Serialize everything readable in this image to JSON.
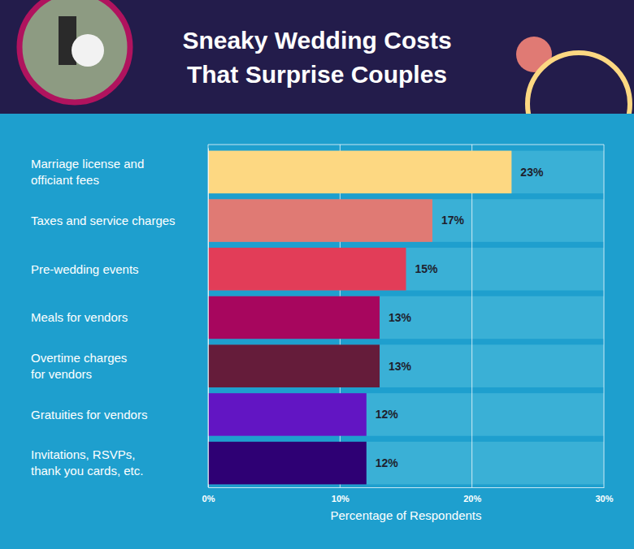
{
  "chart_data": {
    "type": "bar",
    "orientation": "horizontal",
    "title": "Sneaky Wedding Costs\nThat Surprise Couples",
    "categories": [
      "Marriage license and\nofficiant fees",
      "Taxes and service charges",
      "Pre-wedding events",
      "Meals for vendors",
      "Overtime charges\nfor vendors",
      "Gratuities for vendors",
      "Invitations, RSVPs,\nthank you cards, etc."
    ],
    "values": [
      23,
      17,
      15,
      13,
      13,
      12,
      12
    ],
    "value_labels": [
      "23%",
      "17%",
      "15%",
      "13%",
      "13%",
      "12%",
      "12%"
    ],
    "colors": [
      "#fdd882",
      "#e07a74",
      "#e23d58",
      "#a7065e",
      "#651c3a",
      "#6215c3",
      "#2e0074"
    ],
    "x_label": "Percentage of Respondents",
    "xlim": [
      0,
      30
    ],
    "xticks": [
      {
        "value": 0,
        "label": "0%"
      },
      {
        "value": 10,
        "label": "10%"
      },
      {
        "value": 20,
        "label": "20%"
      },
      {
        "value": 30,
        "label": "30%"
      }
    ],
    "grid": true,
    "data_labels": true
  }
}
